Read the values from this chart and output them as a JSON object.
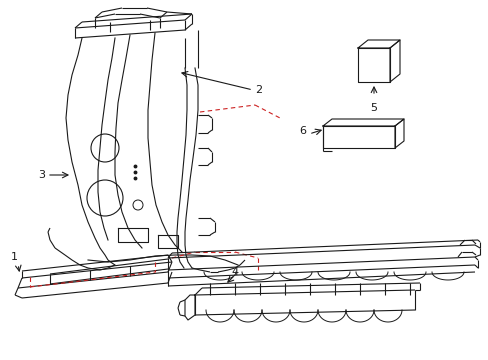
{
  "bg_color": "#ffffff",
  "lc": "#1a1a1a",
  "rc": "#cc2222",
  "figsize": [
    4.89,
    3.6
  ],
  "dpi": 100
}
